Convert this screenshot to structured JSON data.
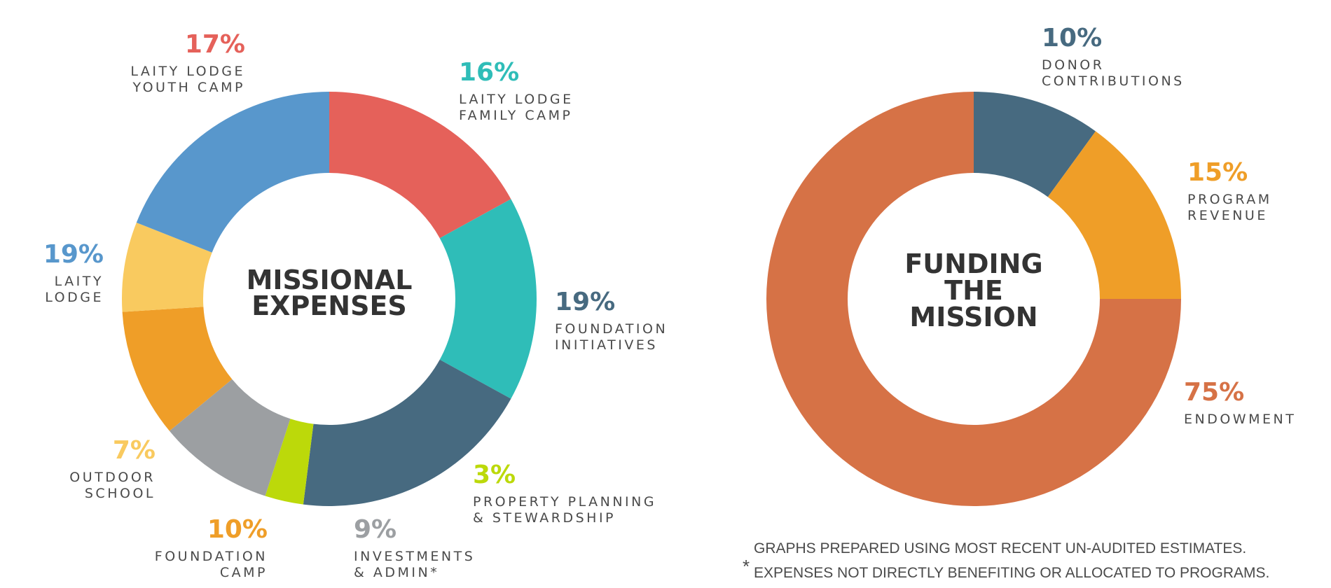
{
  "chart_data": [
    {
      "type": "pie",
      "title_lines": [
        "MISSIONAL",
        "EXPENSES"
      ],
      "slices": [
        {
          "value": 17,
          "pct_label": "17%",
          "label_lines": [
            "LAITY LODGE",
            "YOUTH CAMP"
          ],
          "color": "#e5615a"
        },
        {
          "value": 16,
          "pct_label": "16%",
          "label_lines": [
            "LAITY LODGE",
            "FAMILY CAMP"
          ],
          "color": "#2fbdb8"
        },
        {
          "value": 19,
          "pct_label": "19%",
          "label_lines": [
            "FOUNDATION",
            "INITIATIVES"
          ],
          "color": "#476a80"
        },
        {
          "value": 3,
          "pct_label": "3%",
          "label_lines": [
            "PROPERTY PLANNING",
            "& STEWARDSHIP"
          ],
          "color": "#bcd90a"
        },
        {
          "value": 9,
          "pct_label": "9%",
          "label_lines": [
            "INVESTMENTS",
            "& ADMIN*"
          ],
          "color": "#9c9fa2"
        },
        {
          "value": 10,
          "pct_label": "10%",
          "label_lines": [
            "FOUNDATION",
            "CAMP"
          ],
          "color": "#ef9e28"
        },
        {
          "value": 7,
          "pct_label": "7%",
          "label_lines": [
            "OUTDOOR",
            "SCHOOL"
          ],
          "color": "#f9ca5f"
        },
        {
          "value": 19,
          "pct_label": "19%",
          "label_lines": [
            "LAITY",
            "LODGE"
          ],
          "color": "#5897cc"
        }
      ]
    },
    {
      "type": "pie",
      "title_lines": [
        "FUNDING",
        "THE",
        "MISSION"
      ],
      "slices": [
        {
          "value": 10,
          "pct_label": "10%",
          "label_lines": [
            "DONOR",
            "CONTRIBUTIONS"
          ],
          "color": "#476a80"
        },
        {
          "value": 15,
          "pct_label": "15%",
          "label_lines": [
            "PROGRAM",
            "REVENUE"
          ],
          "color": "#ef9e28"
        },
        {
          "value": 75,
          "pct_label": "75%",
          "label_lines": [
            "ENDOWMENT"
          ],
          "color": "#d67246"
        }
      ]
    }
  ],
  "notes": {
    "line1": "GRAPHS PREPARED USING MOST RECENT UN-AUDITED ESTIMATES.",
    "star": "*",
    "line2": "EXPENSES NOT DIRECTLY BENEFITING OR ALLOCATED TO PROGRAMS."
  }
}
